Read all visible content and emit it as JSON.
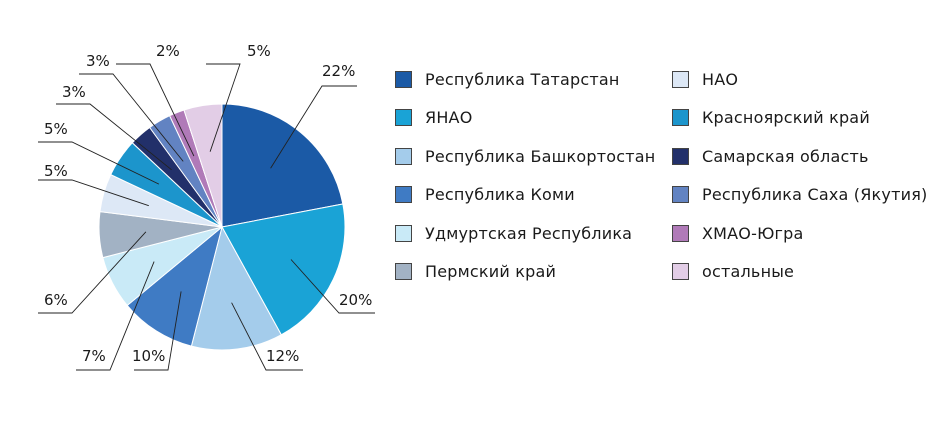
{
  "chart_data": {
    "type": "pie",
    "slices": [
      {
        "label": "Республика  Татарстан",
        "value": 22,
        "pct_label": "22%",
        "color": "#1b5aa6"
      },
      {
        "label": "ЯНАО",
        "value": 20,
        "pct_label": "20%",
        "color": "#1aa3d6"
      },
      {
        "label": "Республика Башкортостан",
        "value": 12,
        "pct_label": "12%",
        "color": "#a4cceb"
      },
      {
        "label": "Республика Коми",
        "value": 10,
        "pct_label": "10%",
        "color": "#3f7bc4"
      },
      {
        "label": "Удмуртская Республика",
        "value": 7,
        "pct_label": "7%",
        "color": "#c9eaf7"
      },
      {
        "label": "Пермский край",
        "value": 6,
        "pct_label": "6%",
        "color": "#a2b2c4"
      },
      {
        "label": "НАО",
        "value": 5,
        "pct_label": "5%",
        "color": "#dde8f6"
      },
      {
        "label": "Красноярский край",
        "value": 5,
        "pct_label": "5%",
        "color": "#1c95cc"
      },
      {
        "label": "Самарская область",
        "value": 3,
        "pct_label": "3%",
        "color": "#22306a"
      },
      {
        "label": "Республика Саха (Якутия)",
        "value": 3,
        "pct_label": "3%",
        "color": "#6283c2"
      },
      {
        "label": "ХМАО-Югра",
        "value": 2,
        "pct_label": "2%",
        "color": "#b07ab8"
      },
      {
        "label": "остальные",
        "value": 5,
        "pct_label": "5%",
        "color": "#e2cde6"
      }
    ],
    "legend": {
      "placement": "right",
      "columns": [
        [
          "Республика  Татарстан",
          "ЯНАО",
          "Республика Башкортостан",
          "Республика Коми",
          "Удмуртская Республика",
          "Пермский край"
        ],
        [
          "НАО",
          "Красноярский край",
          "Самарская область",
          "Республика Саха (Якутия)",
          "ХМАО-Югра",
          "остальные"
        ]
      ]
    },
    "start_angle": "12 o'clock",
    "direction": "clockwise"
  }
}
